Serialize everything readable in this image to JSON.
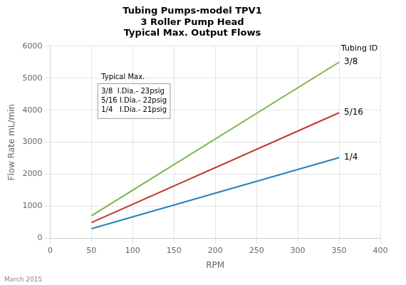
{
  "chart_data": {
    "type": "line",
    "title": [
      "Tubing Pumps-model TPV1",
      "3 Roller Pump Head",
      "Typical Max. Output Flows"
    ],
    "xlabel": "RPM",
    "ylabel": "Flow Rate mL/min",
    "xlim": [
      0,
      400
    ],
    "ylim": [
      0,
      6000
    ],
    "xticks": [
      0,
      50,
      100,
      150,
      200,
      250,
      300,
      350,
      400
    ],
    "yticks": [
      0,
      1000,
      2000,
      3000,
      4000,
      5000,
      6000
    ],
    "grid": true,
    "series": [
      {
        "name": "3/8",
        "color": "#7ab648",
        "x": [
          50,
          350
        ],
        "values": [
          700,
          5500
        ]
      },
      {
        "name": "5/16",
        "color": "#c0392b",
        "x": [
          50,
          350
        ],
        "values": [
          490,
          3920
        ]
      },
      {
        "name": "1/4",
        "color": "#2980b9",
        "x": [
          50,
          350
        ],
        "values": [
          300,
          2520
        ]
      }
    ],
    "annotations": [
      {
        "text": "Tubing ID"
      },
      {
        "text": "Typical Max.",
        "lines": [
          "3/8  I.Dia.- 23psig",
          "5/16 I.Dia.- 22psig",
          "1/4   I.Dia.- 21psig"
        ]
      },
      {
        "text": "March 2015"
      }
    ]
  }
}
